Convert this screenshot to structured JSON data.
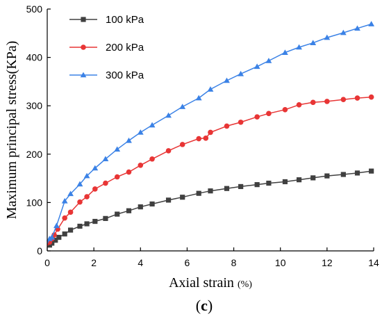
{
  "chart_data": {
    "type": "line",
    "xlabel": "Axial strain",
    "xunit": "(%)",
    "ylabel": "Maximum principal stress(KPa)",
    "panel_label": "(c)",
    "panel_paren_open": "(",
    "panel_letter": "c",
    "panel_paren_close": ")",
    "xlim": [
      0,
      14
    ],
    "ylim": [
      0,
      500
    ],
    "xticks": [
      0,
      2,
      4,
      6,
      8,
      10,
      12,
      14
    ],
    "yticks": [
      0,
      100,
      200,
      300,
      400,
      500
    ],
    "grid": false,
    "legend_position": "top-left",
    "series": [
      {
        "name": "100 kPa",
        "color": "#404040",
        "marker": "square",
        "x": [
          0,
          0.1,
          0.2,
          0.35,
          0.5,
          0.75,
          1.0,
          1.4,
          1.7,
          2.05,
          2.5,
          3.0,
          3.5,
          4.0,
          4.5,
          5.2,
          5.8,
          6.5,
          7.0,
          7.7,
          8.3,
          9.0,
          9.5,
          10.2,
          10.8,
          11.4,
          12.0,
          12.7,
          13.3,
          13.9
        ],
        "y": [
          8,
          12,
          16,
          22,
          28,
          35,
          43,
          51,
          56,
          61,
          67,
          76,
          83,
          91,
          97,
          105,
          111,
          119,
          124,
          129,
          133,
          137,
          140,
          143,
          147,
          151,
          155,
          158,
          161,
          165
        ]
      },
      {
        "name": "200 kPa",
        "color": "#e83535",
        "marker": "circle",
        "x": [
          0,
          0.1,
          0.2,
          0.3,
          0.45,
          0.75,
          1.0,
          1.4,
          1.7,
          2.05,
          2.5,
          3.0,
          3.5,
          4.0,
          4.5,
          5.2,
          5.8,
          6.5,
          6.8,
          7.0,
          7.7,
          8.3,
          9.0,
          9.5,
          10.2,
          10.8,
          11.4,
          12.0,
          12.7,
          13.3,
          13.9
        ],
        "y": [
          10,
          18,
          25,
          33,
          45,
          68,
          80,
          101,
          112,
          128,
          140,
          153,
          163,
          177,
          190,
          207,
          220,
          232,
          233,
          245,
          258,
          266,
          277,
          284,
          292,
          302,
          307,
          309,
          313,
          316,
          318
        ]
      },
      {
        "name": "300 kPa",
        "color": "#3b82e6",
        "marker": "triangle",
        "x": [
          0,
          0.1,
          0.2,
          0.4,
          0.75,
          1.0,
          1.4,
          1.7,
          2.05,
          2.5,
          3.0,
          3.5,
          4.0,
          4.5,
          5.2,
          5.8,
          6.5,
          7.0,
          7.7,
          8.3,
          9.0,
          9.5,
          10.2,
          10.8,
          11.4,
          12.0,
          12.7,
          13.3,
          13.9
        ],
        "y": [
          15,
          25,
          28,
          52,
          103,
          118,
          138,
          155,
          171,
          190,
          210,
          228,
          245,
          260,
          280,
          298,
          316,
          334,
          352,
          366,
          381,
          393,
          410,
          421,
          430,
          441,
          451,
          460,
          469
        ]
      }
    ]
  }
}
